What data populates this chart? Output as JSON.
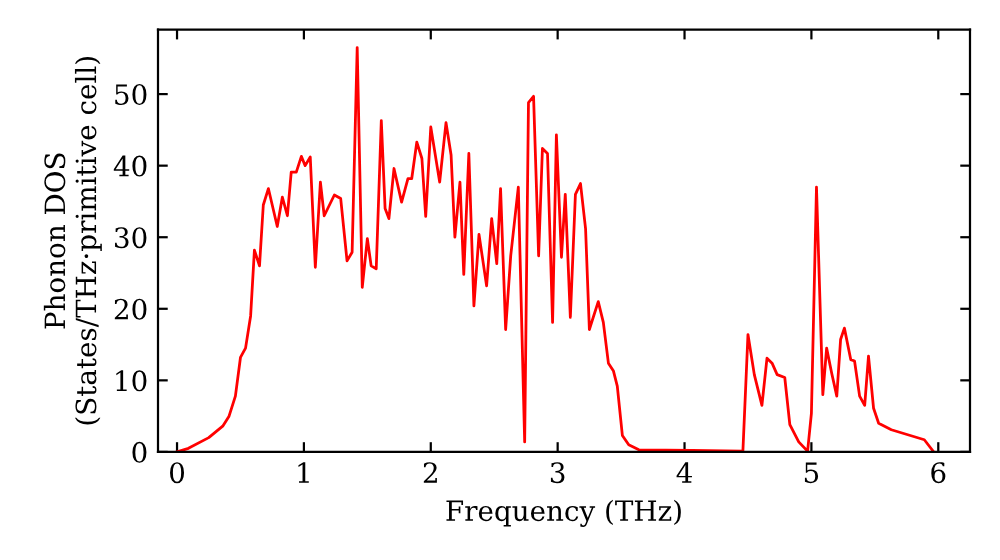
{
  "chart_data": {
    "type": "line",
    "xlabel": "Frequency (THz)",
    "ylabel": "Phonon DOS\n(States/THz·primitive cell)",
    "x": [
      0,
      0.09,
      0.25,
      0.36,
      0.41,
      0.46,
      0.5,
      0.54,
      0.58,
      0.61,
      0.65,
      0.68,
      0.72,
      0.79,
      0.83,
      0.87,
      0.9,
      0.94,
      0.98,
      1.01,
      1.05,
      1.09,
      1.13,
      1.16,
      1.24,
      1.29,
      1.34,
      1.38,
      1.42,
      1.46,
      1.5,
      1.53,
      1.57,
      1.61,
      1.64,
      1.67,
      1.71,
      1.77,
      1.82,
      1.85,
      1.89,
      1.93,
      1.96,
      2.0,
      2.07,
      2.12,
      2.16,
      2.19,
      2.23,
      2.26,
      2.3,
      2.34,
      2.38,
      2.44,
      2.48,
      2.52,
      2.55,
      2.59,
      2.63,
      2.69,
      2.74,
      2.77,
      2.81,
      2.85,
      2.88,
      2.92,
      2.96,
      2.99,
      3.03,
      3.06,
      3.1,
      3.14,
      3.18,
      3.22,
      3.25,
      3.32,
      3.36,
      3.4,
      3.44,
      3.47,
      3.51,
      3.56,
      3.64,
      4.06,
      4.46,
      4.5,
      4.55,
      4.61,
      4.65,
      4.69,
      4.73,
      4.79,
      4.83,
      4.9,
      4.97,
      5.0,
      5.04,
      5.09,
      5.12,
      5.16,
      5.2,
      5.23,
      5.26,
      5.31,
      5.34,
      5.38,
      5.42,
      5.45,
      5.49,
      5.53,
      5.63,
      5.89,
      5.96
    ],
    "series": [
      {
        "color": "#ff0000",
        "values": [
          0,
          0.5,
          2,
          3.6,
          5,
          7.8,
          13.2,
          14.5,
          19,
          28.2,
          26,
          34.5,
          36.8,
          31.5,
          35.6,
          33,
          39.1,
          39.1,
          41.3,
          40,
          41.2,
          25.8,
          37.7,
          33,
          35.9,
          35.4,
          26.7,
          27.9,
          56.5,
          23,
          29.8,
          26,
          25.6,
          46.3,
          34,
          32.6,
          39.6,
          34.9,
          38.2,
          38.2,
          43.3,
          41,
          32.9,
          45.4,
          37.7,
          46,
          41.5,
          30,
          37.7,
          24.8,
          41.7,
          20.4,
          30.4,
          23.2,
          32.6,
          26.3,
          36.8,
          17.1,
          27.4,
          37,
          1.4,
          48.8,
          49.7,
          27.4,
          42.4,
          41.7,
          18.1,
          44.3,
          27.2,
          36,
          18.8,
          36,
          37.5,
          31.2,
          17.1,
          21,
          18.1,
          12.4,
          11.3,
          9.2,
          2.3,
          1,
          0.3,
          0.2,
          0.1,
          16.4,
          10.8,
          6.5,
          13.1,
          12.4,
          10.8,
          10.4,
          3.8,
          1.4,
          0.1,
          5.4,
          37,
          8,
          14.5,
          11,
          7.8,
          15.7,
          17.3,
          12.9,
          12.7,
          7.8,
          6.5,
          13.4,
          6.1,
          4,
          3.1,
          1.7,
          0.1
        ]
      }
    ],
    "xlim": [
      -0.15,
      6.25
    ],
    "ylim": [
      0,
      59
    ],
    "xticks": [
      0,
      1,
      2,
      3,
      4,
      5,
      6
    ],
    "yticks": [
      0,
      10,
      20,
      30,
      40,
      50
    ],
    "grid": false,
    "marker": "none",
    "line_style": "solid"
  }
}
